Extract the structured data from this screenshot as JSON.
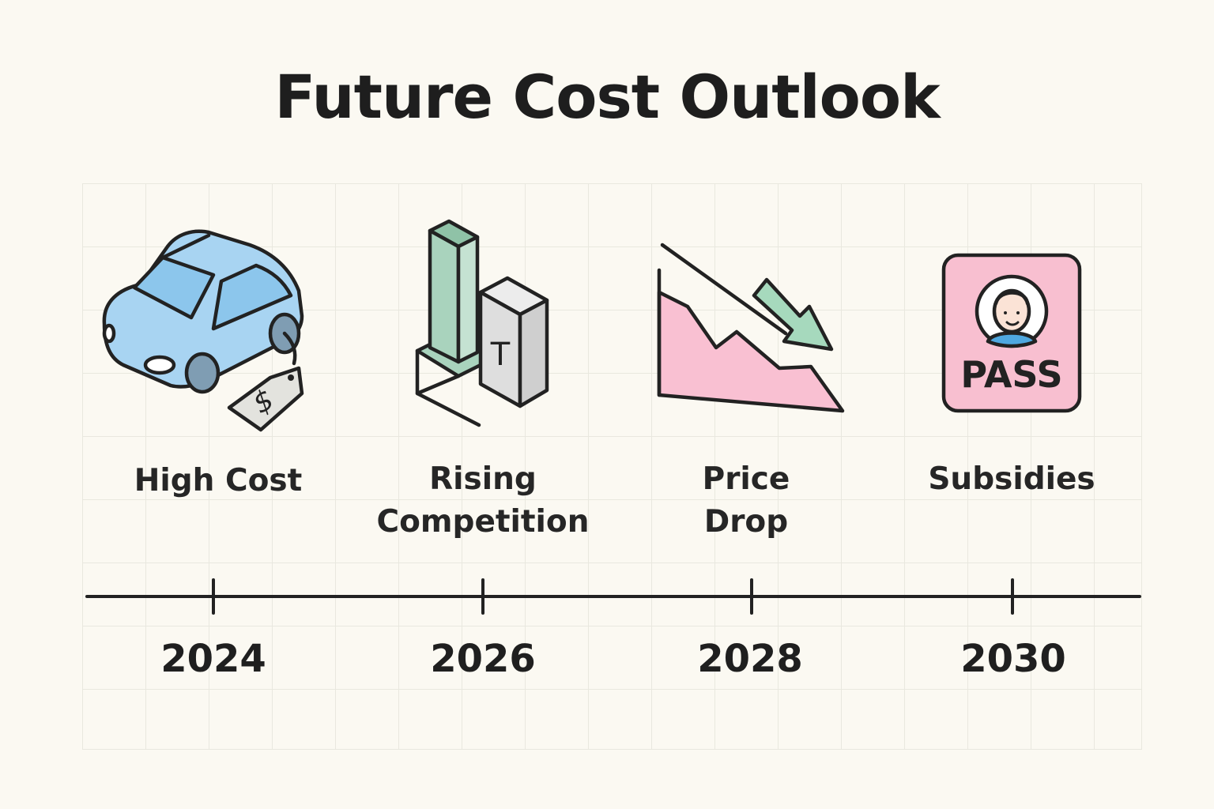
{
  "title": "Future Cost Outlook",
  "stages": [
    {
      "year": "2024",
      "label": "High Cost",
      "icon": "car-price-tag-icon",
      "tag_symbol": "$"
    },
    {
      "year": "2026",
      "label": "Rising\nCompetition",
      "icon": "rising-blocks-icon",
      "block_letter": "T"
    },
    {
      "year": "2028",
      "label": "Price\nDrop",
      "icon": "falling-price-chart-icon"
    },
    {
      "year": "2030",
      "label": "Subsidies",
      "icon": "subsidy-pass-icon",
      "pass_text": "PASS"
    }
  ],
  "colors": {
    "background": "#fbf9f2",
    "car_blue": "#a8d4f2",
    "block_green": "#a9d3bd",
    "block_gray": "#dedede",
    "chart_pink": "#f9c0d2",
    "arrow_green": "#a6d9bd",
    "pass_pink": "#f8bfd0",
    "avatar_blue": "#4fa8e0",
    "ink": "#222222"
  }
}
